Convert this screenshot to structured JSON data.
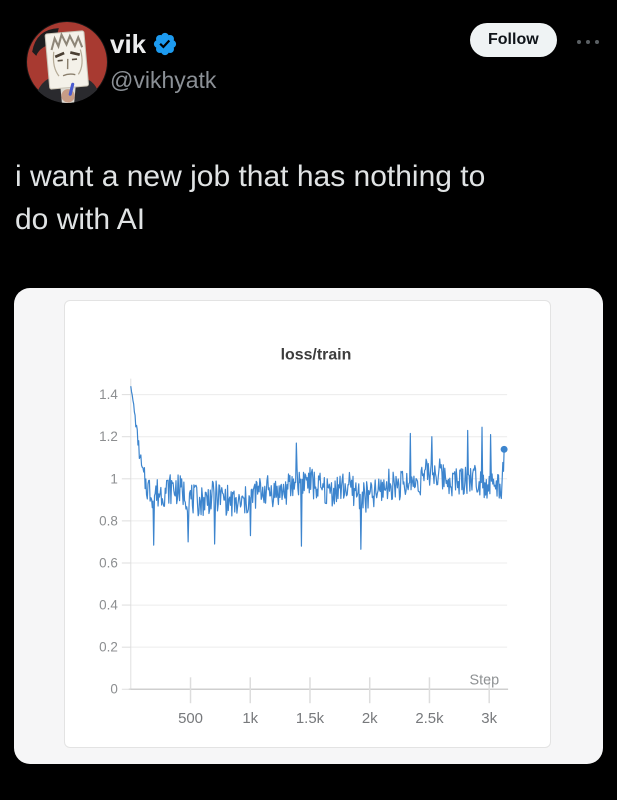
{
  "post": {
    "author": {
      "name": "vik",
      "handle": "@vikhyatk",
      "verified": true
    },
    "follow_label": "Follow",
    "more_options": "more-options",
    "text": "i want a new job that has nothing to do with AI",
    "text_lines": [
      "i want a new job that has nothing to",
      "do with AI"
    ]
  },
  "colors": {
    "background": "#000000",
    "tweet_text": "#e0e3e4",
    "handle_text": "#8b9096",
    "verified_blue": "#1d9bf0",
    "follow_bg": "#eff3f4",
    "follow_text": "#0f1419",
    "card_bg": "#f6f6f7",
    "panel_bg": "#ffffff",
    "panel_border": "#e3e3e3",
    "grid_line": "#ececec",
    "axis_line": "#cfcfcf",
    "series_blue": "#3d85ce",
    "avatar_red": "#a83a31"
  },
  "chart_data": {
    "type": "line",
    "title": "loss/train",
    "xlabel": "Step",
    "ylabel": "",
    "grid": true,
    "legend": "none",
    "xlim": [
      0,
      3140
    ],
    "ylim": [
      0,
      1.5
    ],
    "y_ticks": [
      0,
      0.2,
      0.4,
      0.6,
      0.8,
      1,
      1.2,
      1.4
    ],
    "y_tick_labels": [
      "0",
      "0.2",
      "0.4",
      "0.6",
      "0.8",
      "1",
      "1.2",
      "1.4"
    ],
    "x_ticks": [
      {
        "value": 500,
        "label": "500"
      },
      {
        "value": 1000,
        "label": "1k"
      },
      {
        "value": 1500,
        "label": "1.5k"
      },
      {
        "value": 2000,
        "label": "2k"
      },
      {
        "value": 2500,
        "label": "2.5k"
      },
      {
        "value": 3000,
        "label": "3k"
      }
    ],
    "series": [
      {
        "name": "loss/train",
        "color": "#3d85ce"
      }
    ],
    "trend_points": [
      [
        0,
        1.44
      ],
      [
        25,
        1.34
      ],
      [
        50,
        1.22
      ],
      [
        75,
        1.1
      ],
      [
        100,
        1.01
      ],
      [
        130,
        0.96
      ],
      [
        170,
        0.93
      ],
      [
        250,
        0.915
      ],
      [
        400,
        0.905
      ],
      [
        700,
        0.92
      ],
      [
        1100,
        0.93
      ],
      [
        1600,
        0.95
      ],
      [
        2100,
        0.965
      ],
      [
        2600,
        0.985
      ],
      [
        3000,
        1.0
      ],
      [
        3110,
        1.02
      ],
      [
        3125,
        1.14
      ]
    ],
    "noise": {
      "amplitude": 0.075,
      "ramp_steps": 150,
      "seed": 7,
      "wander": [
        [
          0.03,
          180,
          0
        ],
        [
          0.02,
          57,
          1.3
        ]
      ]
    },
    "low_spikes": [
      [
        190,
        0.685
      ],
      [
        480,
        0.7
      ],
      [
        700,
        0.69
      ],
      [
        1000,
        0.73
      ],
      [
        1430,
        0.68
      ],
      [
        1925,
        0.665
      ]
    ],
    "high_spikes": [
      [
        1385,
        1.17
      ],
      [
        2340,
        1.215
      ],
      [
        2520,
        1.2
      ],
      [
        2820,
        1.23
      ],
      [
        2940,
        1.245
      ],
      [
        3010,
        1.21
      ]
    ],
    "final_point": [
      3125,
      1.14
    ],
    "step_increment": 6
  }
}
